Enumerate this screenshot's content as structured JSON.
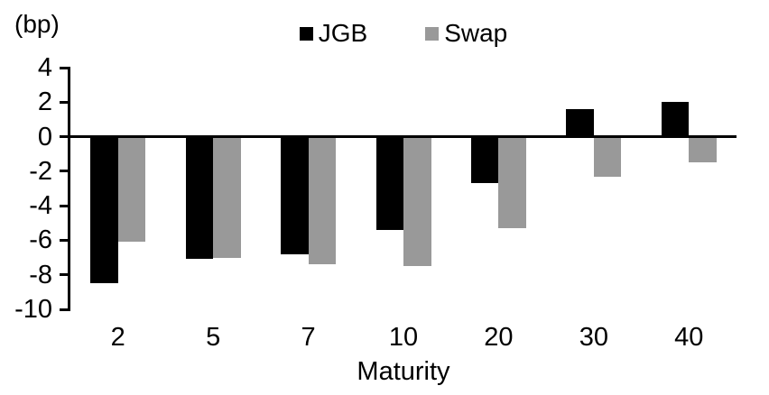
{
  "chart_data": {
    "type": "bar",
    "title": "",
    "unit_label": "(bp)",
    "xlabel": "Maturity",
    "categories": [
      "2",
      "5",
      "7",
      "10",
      "20",
      "30",
      "40"
    ],
    "series": [
      {
        "name": "JGB",
        "color": "#000000",
        "values": [
          -8.5,
          -7.1,
          -6.8,
          -5.4,
          -2.7,
          1.6,
          2.0
        ]
      },
      {
        "name": "Swap",
        "color": "#999999",
        "values": [
          -6.1,
          -7.0,
          -7.4,
          -7.5,
          -5.3,
          -2.3,
          -1.5
        ]
      }
    ],
    "ylim": [
      -10,
      4
    ],
    "yticks": [
      4,
      2,
      0,
      -2,
      -4,
      -6,
      -8,
      -10
    ],
    "legend_position": "top-center",
    "grid": false,
    "axis_color": "#000000",
    "background_color": "#ffffff"
  }
}
